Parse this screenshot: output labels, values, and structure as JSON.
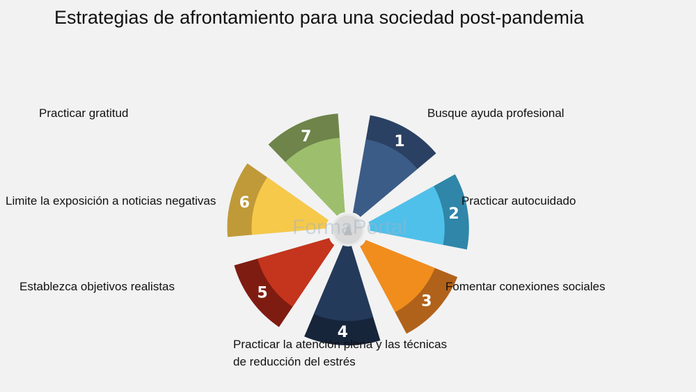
{
  "title": "Estrategias de afrontamiento para una sociedad post-pandemia",
  "watermark": "FormaPortal",
  "segments": [
    {
      "number": "1",
      "label": "Busque ayuda profesional",
      "outer_color": "#2b4163",
      "inner_color": "#3c5c88"
    },
    {
      "number": "2",
      "label": "Practicar autocuidado",
      "outer_color": "#2f86a9",
      "inner_color": "#4fc0ea"
    },
    {
      "number": "3",
      "label": "Fomentar conexiones sociales",
      "outer_color": "#b0621b",
      "inner_color": "#f08d1d"
    },
    {
      "number": "4",
      "label": "Practicar la atención plena y las técnicas de reducción del estrés",
      "label_line1": "Practicar la atención plena y las técnicas",
      "label_line2": "de reducción del estrés",
      "outer_color": "#17253b",
      "inner_color": "#243a5a"
    },
    {
      "number": "5",
      "label": "Establezca objetivos realistas",
      "outer_color": "#7f1c12",
      "inner_color": "#c5341c"
    },
    {
      "number": "6",
      "label": "Limite la exposición a noticias negativas",
      "outer_color": "#c09a38",
      "inner_color": "#f6c94a"
    },
    {
      "number": "7",
      "label": "Practicar gratitud",
      "outer_color": "#6e844a",
      "inner_color": "#9dbf6d"
    }
  ]
}
